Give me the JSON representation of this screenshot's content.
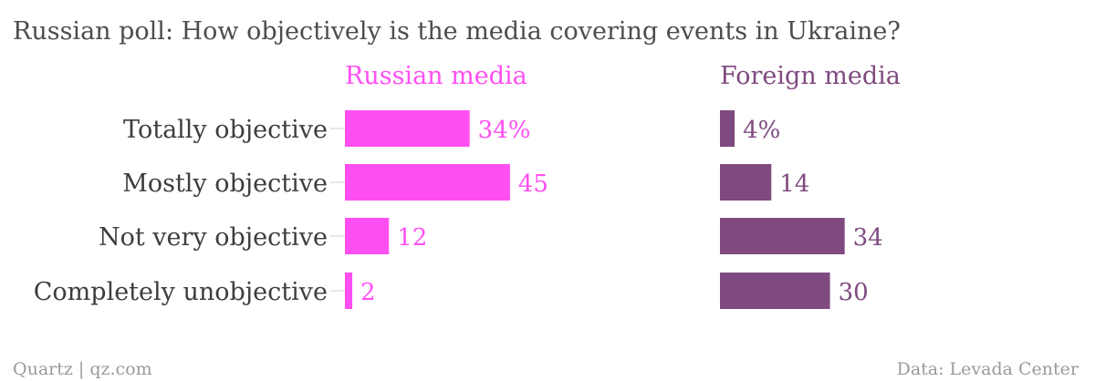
{
  "title": "Russian poll: How objectively is the media covering events in Ukraine?",
  "footer": {
    "source_left": "Quartz | qz.com",
    "source_right": "Data: Levada Center"
  },
  "colors": {
    "russian": "#ff4ff2",
    "foreign": "#7f4a7f",
    "text": "#3d3d3d",
    "footer": "#9a9a9a"
  },
  "chart_data": {
    "type": "bar",
    "orientation": "horizontal",
    "title": "Russian poll: How objectively is the media covering events in Ukraine?",
    "categories": [
      "Totally objective",
      "Mostly objective",
      "Not very objective",
      "Completely unobjective"
    ],
    "series": [
      {
        "name": "Russian media",
        "values": [
          34,
          45,
          12,
          2
        ],
        "labels": [
          "34%",
          "45",
          "12",
          "2"
        ],
        "color": "#ff4ff2"
      },
      {
        "name": "Foreign media",
        "values": [
          4,
          14,
          34,
          30
        ],
        "labels": [
          "4%",
          "14",
          "34",
          "30"
        ],
        "color": "#7f4a7f"
      }
    ],
    "unit": "%",
    "grid": false
  }
}
